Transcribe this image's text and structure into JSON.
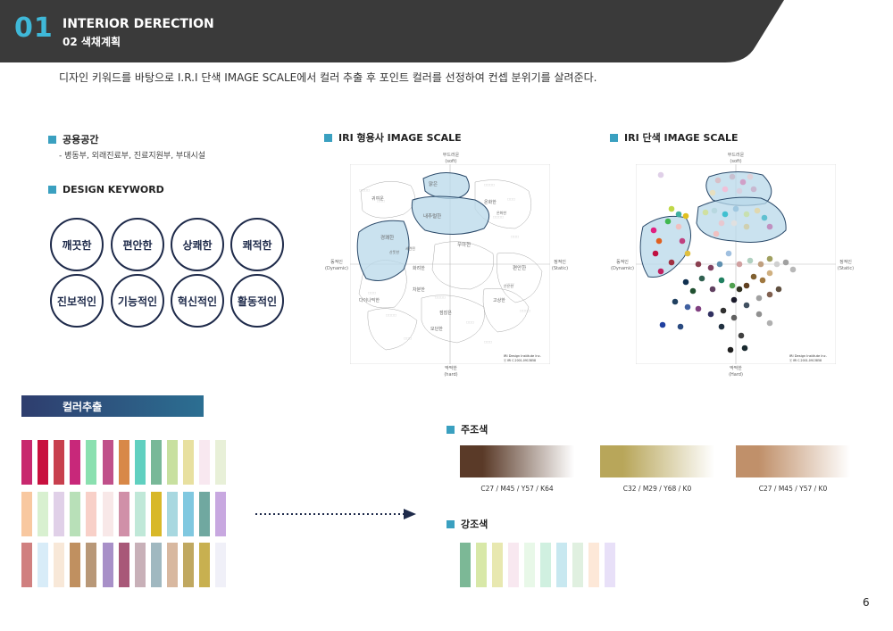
{
  "header": {
    "number": "01",
    "title": "INTERIOR DERECTION",
    "subtitle": "02 색채계획"
  },
  "intro": "디자인 키워드를 바탕으로 I.R.I 단색 IMAGE SCALE에서 컬러 추출 후 포인트 컬러를 선정하여 컨셉 분위기를 살려준다.",
  "public_space": {
    "title": "공용공간",
    "items": "- 병동부, 외래진료부, 진료지원부, 부대시설"
  },
  "design_keyword": {
    "title": "DESIGN KEYWORD",
    "keywords": [
      "깨끗한",
      "편안한",
      "상쾌한",
      "쾌적한",
      "진보적인",
      "기능적인",
      "혁신적인",
      "활동적인"
    ]
  },
  "scale_adj": {
    "title": "IRI 형용사 IMAGE SCALE",
    "top": "부드러운",
    "top_en": "(soft)",
    "bottom": "딱딱한",
    "bottom_en": "(hard)",
    "left": "동적인",
    "left_en": "(Dynamic)",
    "right": "정적인",
    "right_en": "(Static)",
    "words": [
      "맑은",
      "내추럴한",
      "경쾌한",
      "귀여운",
      "우아한",
      "온화한",
      "온화한",
      "차분한",
      "다이나믹한",
      "화려한",
      "고상한",
      "점잖은",
      "모던한",
      "세련된",
      "산뜻한",
      "편안한",
      "은은한"
    ],
    "credit": "IRI Design Institute Inc.",
    "copyright": "ⓒ IRI C.2001-0913858"
  },
  "scale_color": {
    "title": "IRI 단색 IMAGE SCALE",
    "top": "부드러운",
    "top_en": "(soft)",
    "bottom": "딱딱한",
    "bottom_en": "(Hard)",
    "left": "동적인",
    "left_en": "(Dynamic)",
    "right": "정적인",
    "right_en": "(Static)",
    "credit": "IRI Design Institute Inc.",
    "copyright": "ⓒ IRI C.2001-0913858"
  },
  "color_extract": {
    "title": "컬러추출",
    "rows": [
      [
        "#c8286e",
        "#c8103e",
        "#c8404e",
        "#c8287a",
        "#8ae0b0",
        "#c0508a",
        "#d88848",
        "#60d0c0",
        "#78b898",
        "#c8e0a0",
        "#e8e0a0",
        "#f8e8f0",
        "#e8f0d8"
      ],
      [
        "#f8c8a0",
        "#d8f0d0",
        "#e0d0e8",
        "#b8e0b8",
        "#f8d0c8",
        "#f8e8e8",
        "#d090a8",
        "#c0e8d8",
        "#d8b828",
        "#a8d8e0",
        "#80c8e0",
        "#70a8a0",
        "#c8a8e0"
      ],
      [
        "#d08080",
        "#d8ecf8",
        "#f8e8d8",
        "#c09060",
        "#b89878",
        "#a890c8",
        "#a85878",
        "#c8b0b8",
        "#a0b8c0",
        "#d8b8a0",
        "#c0a860",
        "#c8b050",
        "#f0f0f8"
      ]
    ]
  },
  "main_colors": {
    "title": "주조색",
    "items": [
      {
        "color": "#5a3a28",
        "code": "C27 / M45 / Y57 / K64"
      },
      {
        "color": "#b8a65a",
        "code": "C32 / M29 / Y68 / K0"
      },
      {
        "color": "#c0906a",
        "code": "C27 / M45 / Y57 / K0"
      }
    ]
  },
  "accent_colors": {
    "title": "강조색",
    "items": [
      "#7cb896",
      "#d8e8a8",
      "#e8e8b0",
      "#f8e8f0",
      "#e8f8e8",
      "#d0f0e0",
      "#c8e8f0",
      "#e0f0e0",
      "#fde8d8",
      "#e8e0f8"
    ]
  },
  "page_number": "6"
}
